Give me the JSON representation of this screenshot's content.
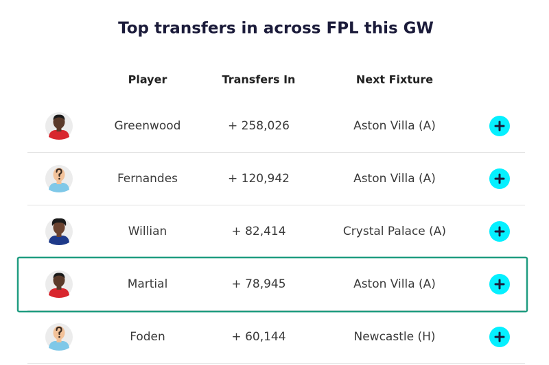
{
  "title": "Top transfers in across FPL this GW",
  "table": {
    "columns": [
      "Player",
      "Transfers In",
      "Next Fixture"
    ],
    "rows": [
      [
        "Greenwood",
        "+ 258,026",
        "Aston Villa (A)"
      ],
      [
        "Fernandes",
        "+ 120,942",
        "Aston Villa (A)"
      ],
      [
        "Willian",
        "+ 82,414",
        "Crystal Palace (A)"
      ],
      [
        "Martial",
        "+ 78,945",
        "Aston Villa (A)"
      ],
      [
        "Foden",
        "+ 60,144",
        "Newcastle (H)"
      ]
    ]
  }
}
